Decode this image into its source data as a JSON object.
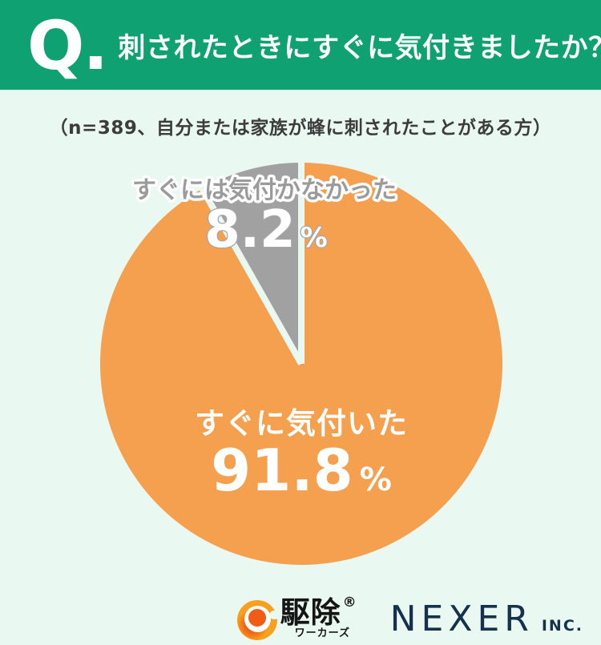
{
  "colors": {
    "header-green": "#10A173",
    "bg-mint": "#E9F8F1",
    "subtitle-text": "#3C3C3C",
    "nexer-navy": "#14324C",
    "logo-orange": "#F8A11E",
    "logo-orange-deep": "#EF5C14",
    "logo-black": "#151515",
    "white": "#FFFFFF",
    "gray-label": "#9B9B9B"
  },
  "header": {
    "q_label": "Q.",
    "title": "刺されたときにすぐに気付きましたか？"
  },
  "subtitle": {
    "text": "（n=389、自分または家族が蜂に刺されたことがある方）"
  },
  "chart_data": {
    "type": "pie",
    "unit": "%",
    "start_angle_deg": 0,
    "direction": "clockwise-from-top",
    "separator_color": "#E9F8F1",
    "legend": "none",
    "labels_position": "inside",
    "slices": [
      {
        "label": "すぐに気付いた",
        "value": 91.8,
        "display": "91.8",
        "color": "#F5A04E"
      },
      {
        "label": "すぐには気付かなかった",
        "value": 8.2,
        "display": "8.2",
        "color": "#A1A1A1"
      }
    ]
  },
  "footer": {
    "kujo_logo": {
      "icon": "swirl-bee-icon",
      "main": "駆除",
      "registered_mark": "®",
      "sub": "ワーカーズ"
    },
    "nexer_logo": {
      "name": "NEXER",
      "suffix": "INC."
    }
  }
}
